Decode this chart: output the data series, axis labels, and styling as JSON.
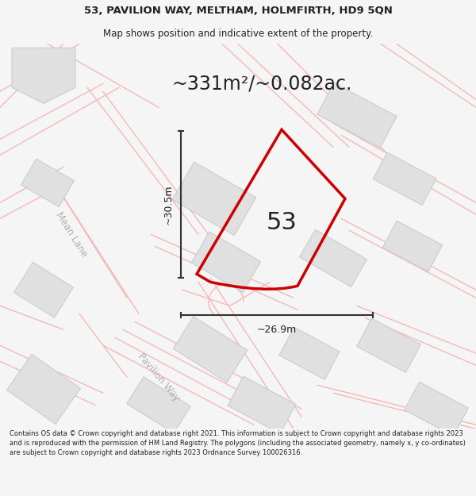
{
  "title_line1": "53, PAVILION WAY, MELTHAM, HOLMFIRTH, HD9 5QN",
  "title_line2": "Map shows position and indicative extent of the property.",
  "area_text": "~331m²/~0.082ac.",
  "label_53": "53",
  "dim_vertical": "~30.5m",
  "dim_horizontal": "~26.9m",
  "road_label1": "Mean Lane",
  "road_label2": "Pavilion Way",
  "footer": "Contains OS data © Crown copyright and database right 2021. This information is subject to Crown copyright and database rights 2023 and is reproduced with the permission of HM Land Registry. The polygons (including the associated geometry, namely x, y co-ordinates) are subject to Crown copyright and database rights 2023 Ordnance Survey 100026316.",
  "bg_color": "#f5f5f5",
  "map_bg": "#ffffff",
  "plot_outline_color": "#cc0000",
  "road_line_color": "#f5b8b8",
  "building_fill": "#e0e0e0",
  "building_outline": "#cccccc",
  "dim_line_color": "#333333"
}
